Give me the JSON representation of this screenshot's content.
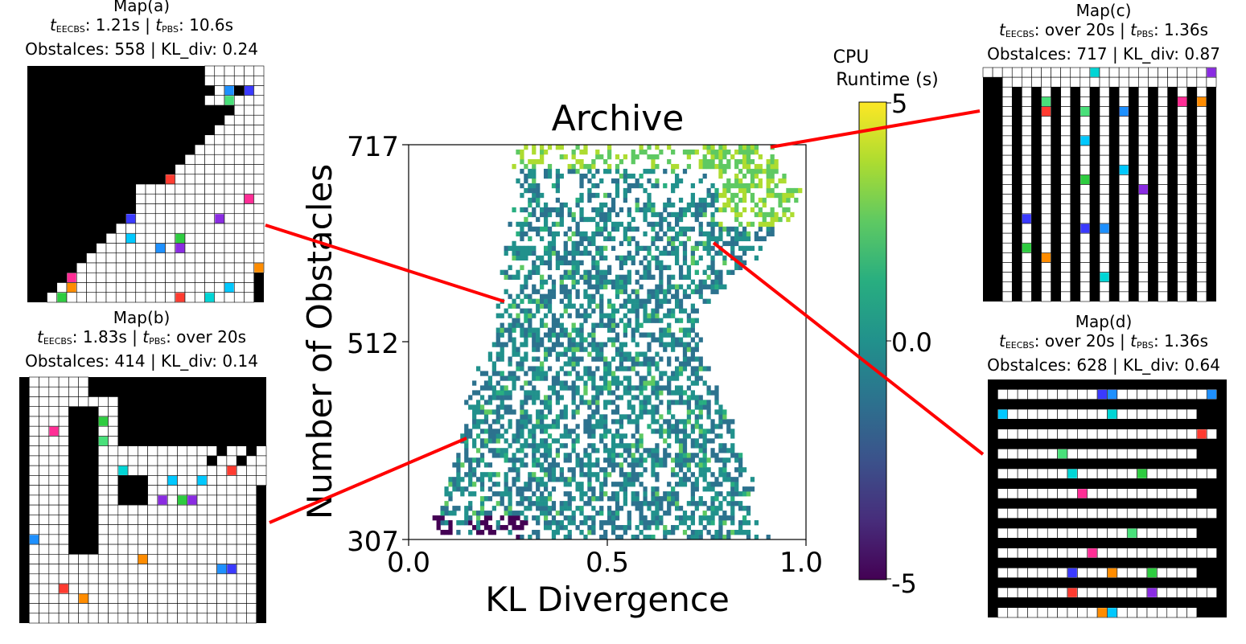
{
  "chart_data": {
    "type": "heatmap",
    "title": "Archive",
    "xlabel": "KL Divergence",
    "ylabel": "Number of Obstacles",
    "xlim": [
      0.0,
      1.0
    ],
    "ylim": [
      307,
      717
    ],
    "xticks": [
      "0.0",
      "0.5",
      "1.0"
    ],
    "yticks": [
      "307",
      "512",
      "717"
    ],
    "colorbar": {
      "label_line1": "CPU",
      "label_line2": "Runtime (s)",
      "range": [
        -5,
        5
      ],
      "ticks": [
        "5",
        "0.0",
        "-5"
      ],
      "colormap": "viridis"
    },
    "density_profile": [
      {
        "y": 310,
        "x_min": 0.06,
        "x_max": 0.86
      },
      {
        "y": 360,
        "x_min": 0.09,
        "x_max": 0.86
      },
      {
        "y": 420,
        "x_min": 0.14,
        "x_max": 0.82
      },
      {
        "y": 480,
        "x_min": 0.19,
        "x_max": 0.74
      },
      {
        "y": 540,
        "x_min": 0.24,
        "x_max": 0.72
      },
      {
        "y": 600,
        "x_min": 0.26,
        "x_max": 0.86
      },
      {
        "y": 660,
        "x_min": 0.28,
        "x_max": 0.98
      },
      {
        "y": 717,
        "x_min": 0.28,
        "x_max": 0.9
      }
    ],
    "highlighted_points": [
      {
        "map": "Map(a)",
        "x": 0.24,
        "y": 558
      },
      {
        "map": "Map(b)",
        "x": 0.14,
        "y": 414
      },
      {
        "map": "Map(c)",
        "x": 0.87,
        "y": 717
      },
      {
        "map": "Map(d)",
        "x": 0.64,
        "y": 628
      }
    ]
  },
  "maps": [
    {
      "id": "a",
      "title": "Map(a)",
      "t1_label": "t",
      "t1_sub": "EECBS",
      "t1_value": ": 1.21s  | ",
      "t2_label": "t",
      "t2_sub": "PBS",
      "t2_value": ": 10.6s",
      "stats": "Obstalces: 558 | KL_div: 0.24"
    },
    {
      "id": "b",
      "title": "Map(b)",
      "t1_label": "t",
      "t1_sub": "EECBS",
      "t1_value": ": 1.83s  | ",
      "t2_label": "t",
      "t2_sub": "PBS",
      "t2_value": ": over 20s",
      "stats": "Obstalces: 414 | KL_div: 0.14"
    },
    {
      "id": "c",
      "title": "Map(c)",
      "t1_label": "t",
      "t1_sub": "EECBS",
      "t1_value": ": over 20s  | ",
      "t2_label": "t",
      "t2_sub": "PBS",
      "t2_value": ": 1.36s",
      "stats": "Obstalces: 717 | KL_div: 0.87"
    },
    {
      "id": "d",
      "title": "Map(d)",
      "t1_label": "t",
      "t1_sub": "EECBS",
      "t1_value": ": over 20s  | ",
      "t2_label": "t",
      "t2_sub": "PBS",
      "t2_value": ": 1.36s",
      "stats": "Obstalces: 628 | KL_div: 0.64"
    }
  ],
  "colors": {
    "connector": "#ff0000",
    "obstacle": "#000000",
    "free_cell": "#ffffff",
    "agent_colors": [
      "#ff3b30",
      "#00c8ff",
      "#8a2be2",
      "#2ecc40",
      "#1e90ff",
      "#ff8c00",
      "#ff2d95",
      "#3a3aff",
      "#49e07a",
      "#00d5d5"
    ]
  }
}
